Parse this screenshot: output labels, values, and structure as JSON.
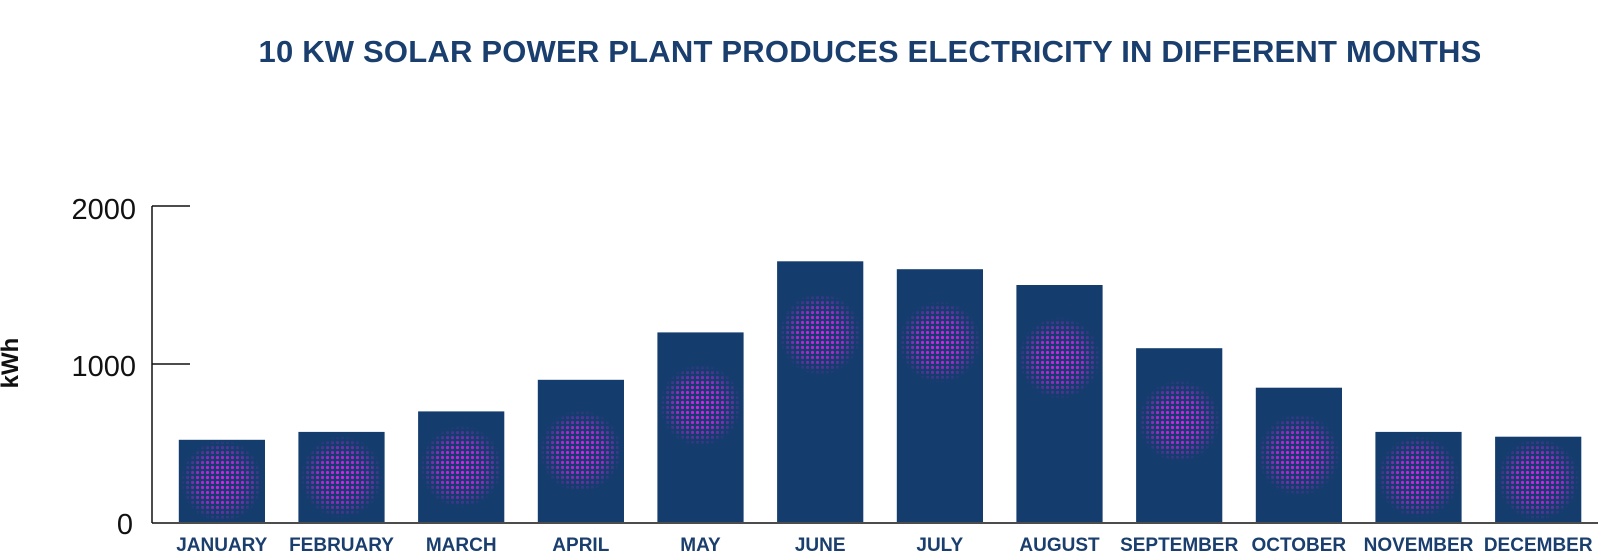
{
  "chart_data": {
    "type": "bar",
    "title": "10 KW SOLAR POWER PLANT PRODUCES ELECTRICITY IN DIFFERENT MONTHS",
    "xlabel": "",
    "ylabel": "kWh",
    "ylim": [
      0,
      2000
    ],
    "yticks": [
      "0",
      "1000",
      "2000"
    ],
    "categories": [
      "JANUARY",
      "FEBRUARY",
      "MARCH",
      "APRIL",
      "MAY",
      "JUNE",
      "JULY",
      "AUGUST",
      "SEPTEMBER",
      "OCTOBER",
      "NOVEMBER",
      "DECEMBER"
    ],
    "values": [
      520,
      570,
      700,
      900,
      1200,
      1650,
      1600,
      1500,
      1100,
      850,
      570,
      540
    ],
    "grid": false,
    "legend": "none",
    "colors": {
      "bar": "#143d6e",
      "glow": "#e020f0",
      "title": "#1a3f6e",
      "axis": "#111111"
    }
  }
}
